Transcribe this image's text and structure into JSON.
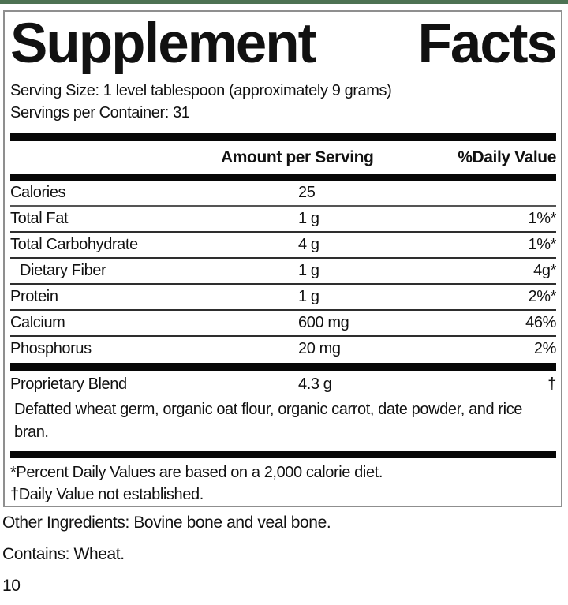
{
  "accent": {
    "top_strip_color": "#4d7253",
    "bar_color": "#070707",
    "border_color": "#8f8f8f"
  },
  "title": {
    "word1": "Supplement",
    "word2": "Facts"
  },
  "serving_info": {
    "serving_size": "Serving Size: 1 level tablespoon (approximately 9 grams)",
    "servings_per_container": "Servings per Container: 31"
  },
  "table": {
    "amount_header": "Amount per Serving",
    "dv_header": "%Daily Value",
    "rows": [
      {
        "name": "Calories",
        "amount": "25",
        "dv": ""
      },
      {
        "name": "Total Fat",
        "amount": "1 g",
        "dv": "1%*"
      },
      {
        "name": "Total Carbohydrate",
        "amount": "4 g",
        "dv": "1%*"
      },
      {
        "name": "Dietary Fiber",
        "amount": "1 g",
        "dv": "4g*"
      },
      {
        "name": "Protein",
        "amount": "1 g",
        "dv": "2%*"
      },
      {
        "name": "Calcium",
        "amount": "600 mg",
        "dv": "46%"
      },
      {
        "name": "Phosphorus",
        "amount": "20 mg",
        "dv": "2%"
      }
    ],
    "proprietary": {
      "name": "Proprietary Blend",
      "amount": "4.3 g",
      "dv": "†",
      "description": "Defatted wheat germ, organic oat flour, organic carrot, date powder, and rice bran."
    }
  },
  "footnotes": {
    "percent_daily": "*Percent Daily Values are based on a 2,000 calorie diet.",
    "not_established": "†Daily Value not established."
  },
  "other_info": {
    "other_ingredients": "Other Ingredients: Bovine bone and veal bone.",
    "contains": "Contains: Wheat.",
    "page_number": "10"
  }
}
